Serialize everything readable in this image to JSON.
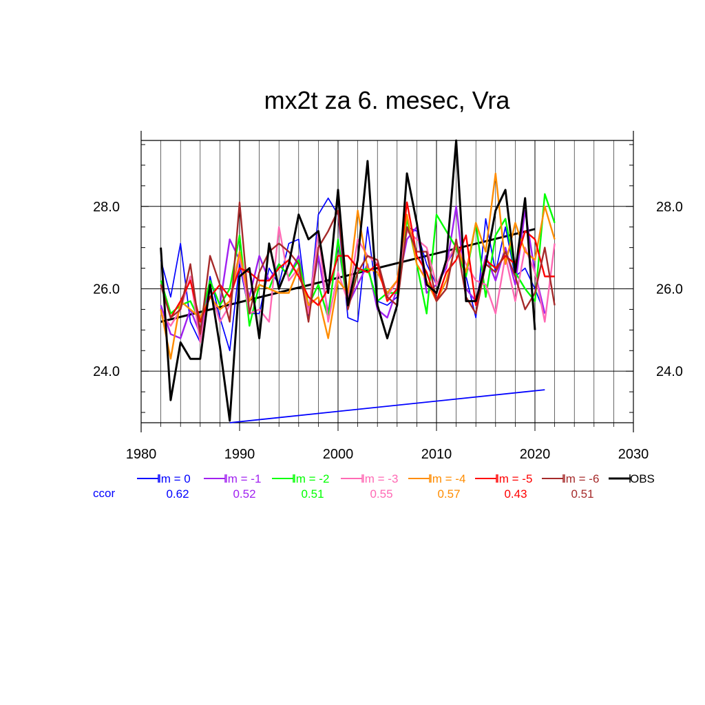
{
  "chart_data": {
    "type": "line",
    "title": "mx2t za 6. mesec, Vra",
    "xlabel": "",
    "ylabel": "",
    "xlim": [
      1980,
      2030
    ],
    "ylim": [
      22.75,
      29.6
    ],
    "x_ticks": [
      1980,
      1990,
      2000,
      2010,
      2020,
      2030
    ],
    "x_tick_labels": [
      "1980",
      "1990",
      "2000",
      "2010",
      "2020",
      "2030"
    ],
    "y_ticks": [
      24.0,
      26.0,
      28.0
    ],
    "y_tick_labels": [
      "24.0",
      "26.0",
      "28.0"
    ],
    "grid": true,
    "legend_position": "bottom",
    "ccor_label": "ccor",
    "ccor_color": "#0000ff",
    "series": [
      {
        "name": "lm = 0",
        "color": "#0000ff",
        "ccor": "0.62",
        "start": 1982,
        "values": [
          26.7,
          25.8,
          27.1,
          25.2,
          24.7,
          26.3,
          25.3,
          24.5,
          26.6,
          25.4,
          25.4,
          26.5,
          26.1,
          27.1,
          27.2,
          25.3,
          27.8,
          28.2,
          27.8,
          25.3,
          25.2,
          27.5,
          25.7,
          25.6,
          25.8,
          27.5,
          27.4,
          26.6,
          26.1,
          26.6,
          27.0,
          26.3,
          25.3,
          27.7,
          26.4,
          27.5,
          26.3,
          26.5,
          26.0,
          25.4
        ]
      },
      {
        "name": "lm = -1",
        "color": "#a020f0",
        "ccor": "0.52",
        "start": 1982,
        "values": [
          25.6,
          24.9,
          24.8,
          25.5,
          24.9,
          26.2,
          25.6,
          27.2,
          26.7,
          25.8,
          26.8,
          26.2,
          26.6,
          26.3,
          26.8,
          25.5,
          26.8,
          25.4,
          27.1,
          25.6,
          26.1,
          26.6,
          25.5,
          25.3,
          26.0,
          27.2,
          27.5,
          25.9,
          26.1,
          26.5,
          28.0,
          26.0,
          25.7,
          26.8,
          26.2,
          27.0,
          26.1,
          27.9,
          26.4,
          25.4
        ]
      },
      {
        "name": "lm = -2",
        "color": "#00ff00",
        "ccor": "0.51",
        "start": 1982,
        "values": [
          26.2,
          25.4,
          25.6,
          25.7,
          25.2,
          26.2,
          25.6,
          26.0,
          27.3,
          25.1,
          26.1,
          26.0,
          26.6,
          26.3,
          26.7,
          25.6,
          26.1,
          25.3,
          27.2,
          25.6,
          26.4,
          26.5,
          25.7,
          25.9,
          25.9,
          27.7,
          26.6,
          25.4,
          27.8,
          27.4,
          27.0,
          26.3,
          27.6,
          25.8,
          27.3,
          27.7,
          26.4,
          26.0,
          25.7,
          28.3,
          27.6
        ]
      },
      {
        "name": "lm = -3",
        "color": "#ff69b4",
        "ccor": "0.55",
        "start": 1982,
        "values": [
          25.4,
          25.1,
          25.5,
          26.3,
          24.7,
          26.0,
          25.2,
          25.6,
          26.8,
          25.4,
          25.5,
          25.2,
          27.5,
          26.2,
          26.5,
          25.4,
          27.4,
          25.2,
          26.4,
          25.7,
          27.2,
          26.8,
          26.6,
          25.8,
          26.2,
          27.4,
          27.2,
          27.0,
          26.1,
          26.6,
          27.1,
          26.6,
          26.2,
          26.1,
          25.4,
          26.8,
          25.7,
          27.0,
          26.4,
          25.2,
          27.1
        ]
      },
      {
        "name": "lm = -4",
        "color": "#ff8c00",
        "ccor": "0.57",
        "start": 1982,
        "values": [
          25.5,
          24.3,
          25.7,
          25.5,
          25.3,
          25.8,
          25.5,
          25.7,
          26.9,
          25.7,
          26.1,
          26.0,
          25.9,
          25.9,
          26.5,
          25.6,
          25.8,
          24.8,
          26.2,
          25.9,
          27.9,
          26.5,
          26.4,
          25.9,
          26.2,
          27.8,
          26.6,
          26.2,
          25.7,
          26.2,
          27.1,
          26.4,
          27.6,
          26.9,
          28.8,
          26.6,
          27.6,
          26.9,
          26.7,
          28.0,
          27.2
        ]
      },
      {
        "name": "lm = -5",
        "color": "#ff0000",
        "ccor": "0.43",
        "start": 1982,
        "values": [
          26.1,
          25.3,
          25.7,
          26.2,
          25.2,
          25.8,
          26.1,
          25.8,
          26.5,
          26.4,
          26.2,
          26.2,
          26.5,
          26.7,
          26.3,
          25.8,
          25.6,
          26.0,
          26.8,
          26.8,
          26.5,
          26.4,
          26.6,
          25.7,
          26.0,
          28.1,
          26.8,
          26.4,
          25.7,
          26.4,
          26.7,
          27.3,
          25.6,
          26.7,
          26.5,
          26.8,
          26.6,
          27.4,
          27.2,
          26.3,
          26.3
        ]
      },
      {
        "name": "lm = -6",
        "color": "#a52a2a",
        "ccor": "0.51",
        "start": 1982,
        "values": [
          26.1,
          25.3,
          25.5,
          26.6,
          24.9,
          26.8,
          26.1,
          25.2,
          28.1,
          25.4,
          26.4,
          26.9,
          27.1,
          26.9,
          26.6,
          25.2,
          27.0,
          27.4,
          27.9,
          25.5,
          26.4,
          26.8,
          26.7,
          25.8,
          25.6,
          27.5,
          26.9,
          26.9,
          25.7,
          26.0,
          27.2,
          25.8,
          25.4,
          26.6,
          26.4,
          26.9,
          26.3,
          25.5,
          25.9,
          27.0,
          25.6
        ]
      },
      {
        "name": "OBS",
        "color": "#000000",
        "ccor": "",
        "start": 1982,
        "values": [
          27.0,
          23.3,
          24.7,
          24.3,
          24.3,
          26.1,
          24.6,
          22.8,
          26.3,
          26.5,
          24.8,
          27.1,
          26.0,
          26.6,
          27.8,
          27.2,
          27.4,
          25.9,
          28.4,
          25.6,
          26.7,
          29.1,
          25.6,
          24.8,
          25.6,
          28.8,
          27.6,
          26.1,
          25.9,
          26.7,
          29.6,
          25.7,
          25.7,
          26.6,
          27.9,
          28.4,
          26.4,
          28.2,
          25.0
        ]
      }
    ],
    "trend_lines": [
      {
        "name": "OBS trend",
        "color": "#000000",
        "x": [
          1982,
          2020
        ],
        "y": [
          25.2,
          27.45
        ]
      },
      {
        "name": "lm = 0 trend",
        "color": "#0000ff",
        "x": [
          1989,
          2021
        ],
        "y": [
          22.75,
          23.55
        ]
      }
    ]
  }
}
